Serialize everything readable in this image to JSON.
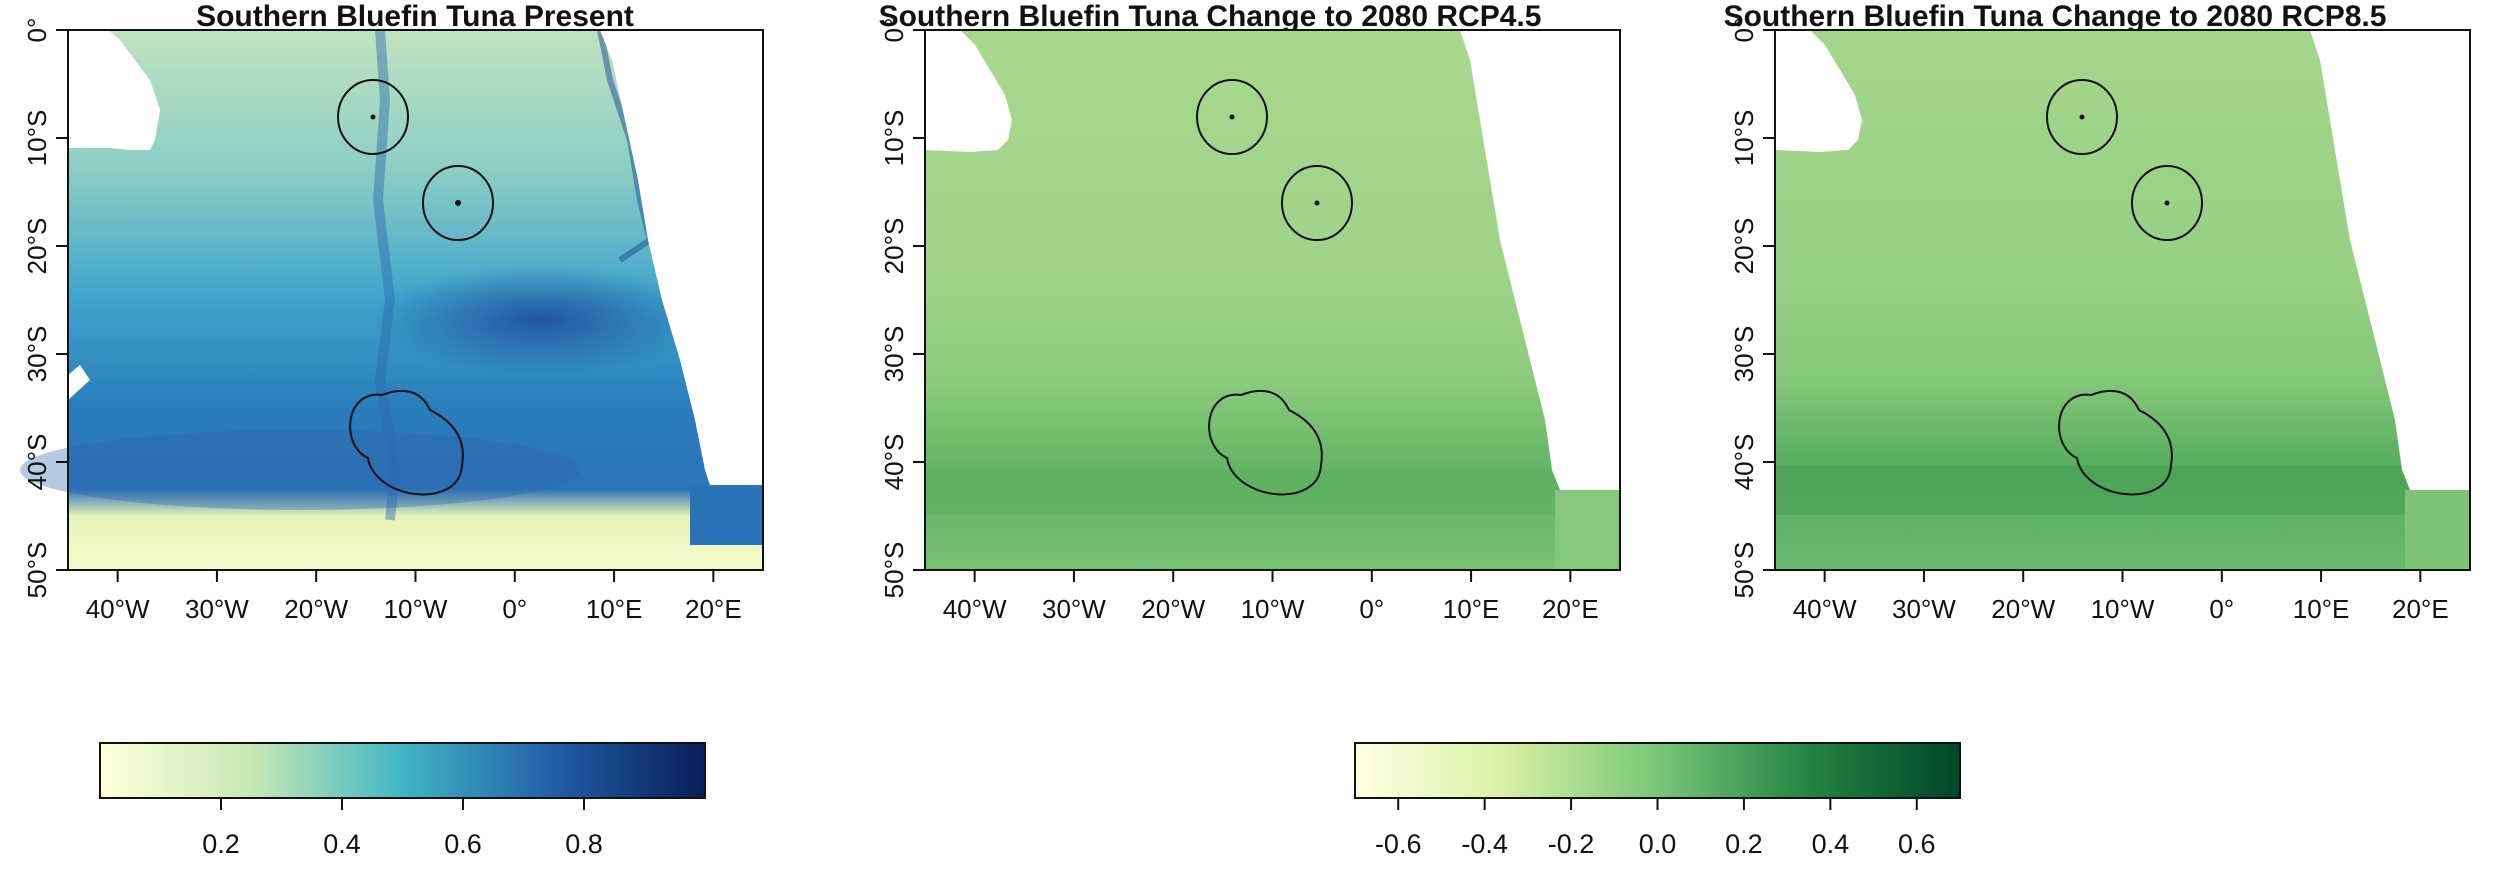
{
  "panels": [
    {
      "id": "present",
      "title": "Southern Bluefin Tuna Present",
      "palette": "blue",
      "x_ticks": [
        "40°W",
        "30°W",
        "20°W",
        "10°W",
        "0°",
        "10°E",
        "20°E"
      ],
      "y_ticks": [
        "0°",
        "10°S",
        "20°S",
        "30°S",
        "40°S",
        "50°S"
      ]
    },
    {
      "id": "rcp45",
      "title": "Southern Bluefin Tuna Change to 2080 RCP4.5",
      "palette": "green",
      "x_ticks": [
        "40°W",
        "30°W",
        "20°W",
        "10°W",
        "0°",
        "10°E",
        "20°E"
      ],
      "y_ticks": [
        "0°",
        "10°S",
        "20°S",
        "30°S",
        "40°S",
        "50°S"
      ]
    },
    {
      "id": "rcp85",
      "title": "Southern Bluefin Tuna Change to 2080 RCP8.5",
      "palette": "green",
      "x_ticks": [
        "40°W",
        "30°W",
        "20°W",
        "10°W",
        "0°",
        "10°E",
        "20°E"
      ],
      "y_ticks": [
        "0°",
        "10°S",
        "20°S",
        "30°S",
        "40°S",
        "50°S"
      ]
    }
  ],
  "colorbars": [
    {
      "id": "present-scale",
      "ticks": [
        "0.2",
        "0.4",
        "0.6",
        "0.8"
      ],
      "range": [
        0,
        1
      ],
      "colors": [
        "#ffffd9",
        "#c7e9b4",
        "#41b6c4",
        "#225ea8",
        "#081d58"
      ]
    },
    {
      "id": "change-scale",
      "ticks": [
        "-0.6",
        "-0.4",
        "-0.2",
        "0.0",
        "0.2",
        "0.4",
        "0.6"
      ],
      "range": [
        -0.7,
        0.7
      ],
      "colors": [
        "#ffffe5",
        "#d9f0a3",
        "#78c679",
        "#238443",
        "#004529"
      ]
    }
  ],
  "map_data": {
    "lon_range": [
      -45,
      25
    ],
    "lat_range": [
      -50,
      0
    ],
    "seamount_areas": [
      {
        "lon": -14.5,
        "lat": -8,
        "radius_deg": 3.5
      },
      {
        "lon": -6,
        "lat": -16,
        "radius_deg": 3.5
      },
      {
        "lon": -13,
        "lat": -37,
        "radius_deg": 4.5
      },
      {
        "lon": -10,
        "lat": -40.5,
        "radius_deg": 4.5
      }
    ]
  }
}
